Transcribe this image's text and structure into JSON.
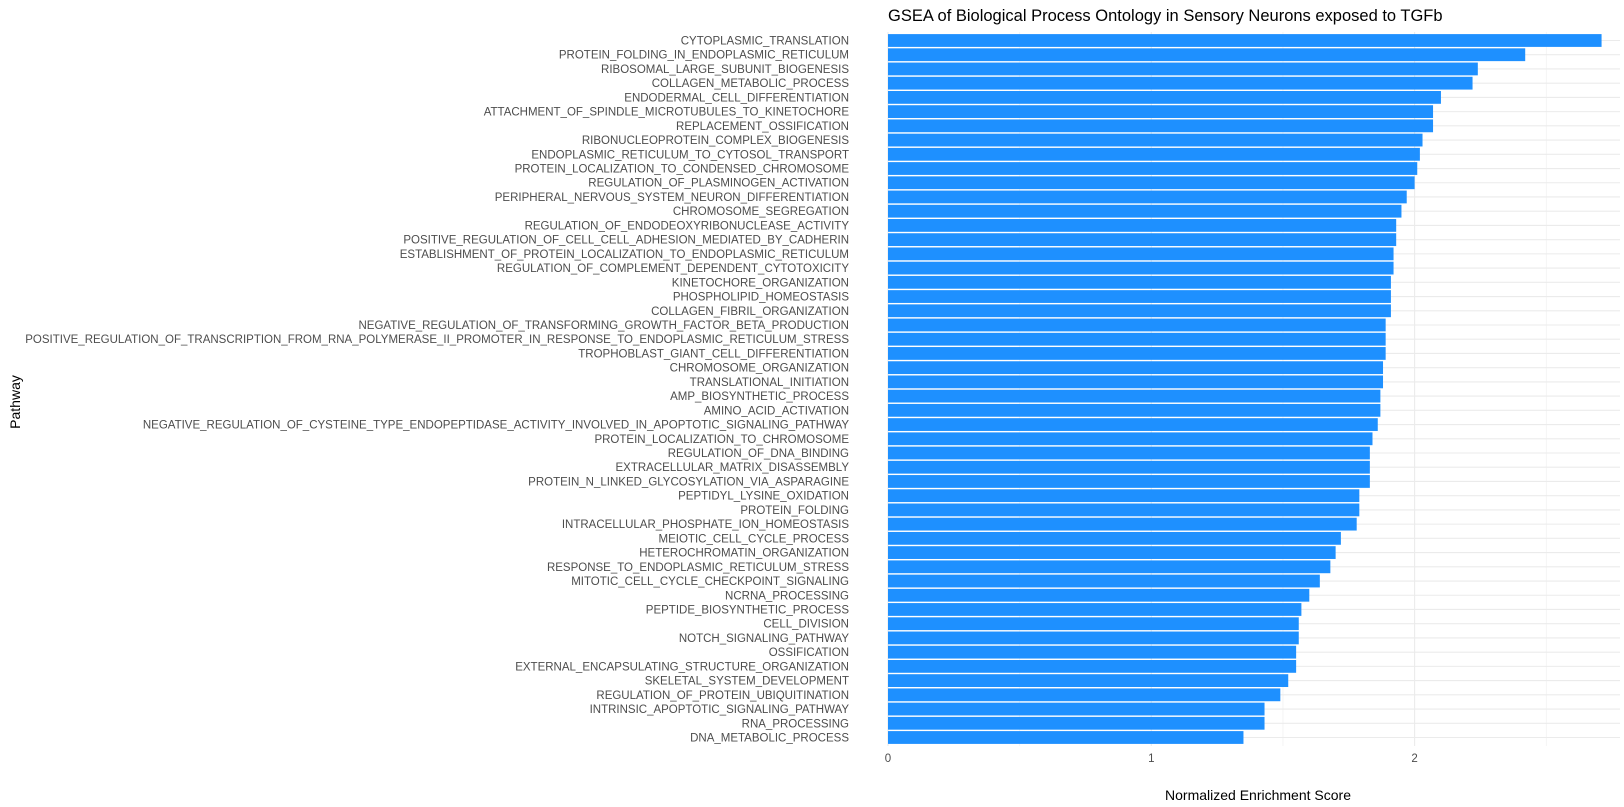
{
  "chart_data": {
    "type": "bar",
    "orientation": "horizontal",
    "title": "GSEA of Biological Process Ontology in Sensory Neurons exposed to TGFb",
    "xlabel": "Normalized Enrichment Score",
    "ylabel": "Pathway",
    "xlim": [
      0,
      2.78
    ],
    "xticks": [
      0,
      1,
      2
    ],
    "grid": true,
    "bar_color": "#1e90ff",
    "categories": [
      "CYTOPLASMIC_TRANSLATION",
      "PROTEIN_FOLDING_IN_ENDOPLASMIC_RETICULUM",
      "RIBOSOMAL_LARGE_SUBUNIT_BIOGENESIS",
      "COLLAGEN_METABOLIC_PROCESS",
      "ENDODERMAL_CELL_DIFFERENTIATION",
      "ATTACHMENT_OF_SPINDLE_MICROTUBULES_TO_KINETOCHORE",
      "REPLACEMENT_OSSIFICATION",
      "RIBONUCLEOPROTEIN_COMPLEX_BIOGENESIS",
      "ENDOPLASMIC_RETICULUM_TO_CYTOSOL_TRANSPORT",
      "PROTEIN_LOCALIZATION_TO_CONDENSED_CHROMOSOME",
      "REGULATION_OF_PLASMINOGEN_ACTIVATION",
      "PERIPHERAL_NERVOUS_SYSTEM_NEURON_DIFFERENTIATION",
      "CHROMOSOME_SEGREGATION",
      "REGULATION_OF_ENDODEOXYRIBONUCLEASE_ACTIVITY",
      "POSITIVE_REGULATION_OF_CELL_CELL_ADHESION_MEDIATED_BY_CADHERIN",
      "ESTABLISHMENT_OF_PROTEIN_LOCALIZATION_TO_ENDOPLASMIC_RETICULUM",
      "REGULATION_OF_COMPLEMENT_DEPENDENT_CYTOTOXICITY",
      "KINETOCHORE_ORGANIZATION",
      "PHOSPHOLIPID_HOMEOSTASIS",
      "COLLAGEN_FIBRIL_ORGANIZATION",
      "NEGATIVE_REGULATION_OF_TRANSFORMING_GROWTH_FACTOR_BETA_PRODUCTION",
      "POSITIVE_REGULATION_OF_TRANSCRIPTION_FROM_RNA_POLYMERASE_II_PROMOTER_IN_RESPONSE_TO_ENDOPLASMIC_RETICULUM_STRESS",
      "TROPHOBLAST_GIANT_CELL_DIFFERENTIATION",
      "CHROMOSOME_ORGANIZATION",
      "TRANSLATIONAL_INITIATION",
      "AMP_BIOSYNTHETIC_PROCESS",
      "AMINO_ACID_ACTIVATION",
      "NEGATIVE_REGULATION_OF_CYSTEINE_TYPE_ENDOPEPTIDASE_ACTIVITY_INVOLVED_IN_APOPTOTIC_SIGNALING_PATHWAY",
      "PROTEIN_LOCALIZATION_TO_CHROMOSOME",
      "REGULATION_OF_DNA_BINDING",
      "EXTRACELLULAR_MATRIX_DISASSEMBLY",
      "PROTEIN_N_LINKED_GLYCOSYLATION_VIA_ASPARAGINE",
      "PEPTIDYL_LYSINE_OXIDATION",
      "PROTEIN_FOLDING",
      "INTRACELLULAR_PHOSPHATE_ION_HOMEOSTASIS",
      "MEIOTIC_CELL_CYCLE_PROCESS",
      "HETEROCHROMATIN_ORGANIZATION",
      "RESPONSE_TO_ENDOPLASMIC_RETICULUM_STRESS",
      "MITOTIC_CELL_CYCLE_CHECKPOINT_SIGNALING",
      "NCRNA_PROCESSING",
      "PEPTIDE_BIOSYNTHETIC_PROCESS",
      "CELL_DIVISION",
      "NOTCH_SIGNALING_PATHWAY",
      "OSSIFICATION",
      "EXTERNAL_ENCAPSULATING_STRUCTURE_ORGANIZATION",
      "SKELETAL_SYSTEM_DEVELOPMENT",
      "REGULATION_OF_PROTEIN_UBIQUITINATION",
      "INTRINSIC_APOPTOTIC_SIGNALING_PATHWAY",
      "RNA_PROCESSING",
      "DNA_METABOLIC_PROCESS"
    ],
    "values": [
      2.71,
      2.42,
      2.24,
      2.22,
      2.1,
      2.07,
      2.07,
      2.03,
      2.02,
      2.01,
      2.0,
      1.97,
      1.95,
      1.93,
      1.93,
      1.92,
      1.92,
      1.91,
      1.91,
      1.91,
      1.89,
      1.89,
      1.89,
      1.88,
      1.88,
      1.87,
      1.87,
      1.86,
      1.84,
      1.83,
      1.83,
      1.83,
      1.79,
      1.79,
      1.78,
      1.72,
      1.7,
      1.68,
      1.64,
      1.6,
      1.57,
      1.56,
      1.56,
      1.55,
      1.55,
      1.52,
      1.49,
      1.43,
      1.43,
      1.35
    ]
  }
}
